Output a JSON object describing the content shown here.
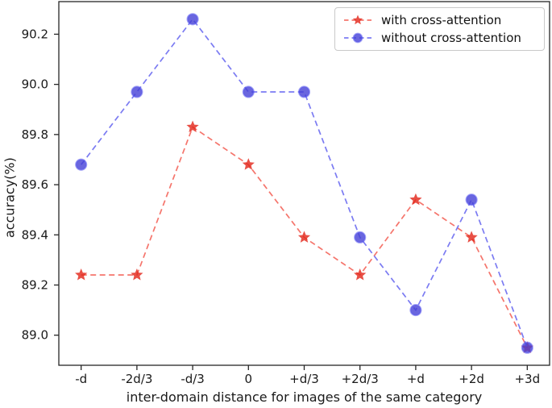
{
  "chart_data": {
    "type": "line",
    "title": "",
    "categories": [
      "-d",
      "-2d/3",
      "-d/3",
      "0",
      "+d/3",
      "+2d/3",
      "+d",
      "+2d",
      "+3d"
    ],
    "series": [
      {
        "name": "with cross-attention",
        "marker": "star",
        "line_style": "dashed",
        "line_color": "#f5756c",
        "marker_color": "#e3281c",
        "values": [
          89.24,
          89.24,
          89.83,
          89.68,
          89.39,
          89.24,
          89.54,
          89.39,
          88.95
        ]
      },
      {
        "name": "without cross-attention",
        "marker": "circle",
        "line_style": "dashed",
        "line_color": "#7b7bf2",
        "marker_color": "#4540d6",
        "marker_edge_color": "#5b5bef",
        "values": [
          89.68,
          89.97,
          90.26,
          89.97,
          89.97,
          89.39,
          89.1,
          89.54,
          88.95
        ]
      }
    ],
    "xlabel": "inter-domain distance for images of the same category",
    "ylabel": "accuracy(%)",
    "yticks": [
      "89.0",
      "89.2",
      "89.4",
      "89.6",
      "89.8",
      "90.0",
      "90.2"
    ],
    "ylim": [
      88.88,
      90.33
    ],
    "grid": false,
    "legend_position": "upper right",
    "axis_color": "#262626",
    "text_color": "#1a1a1a"
  }
}
